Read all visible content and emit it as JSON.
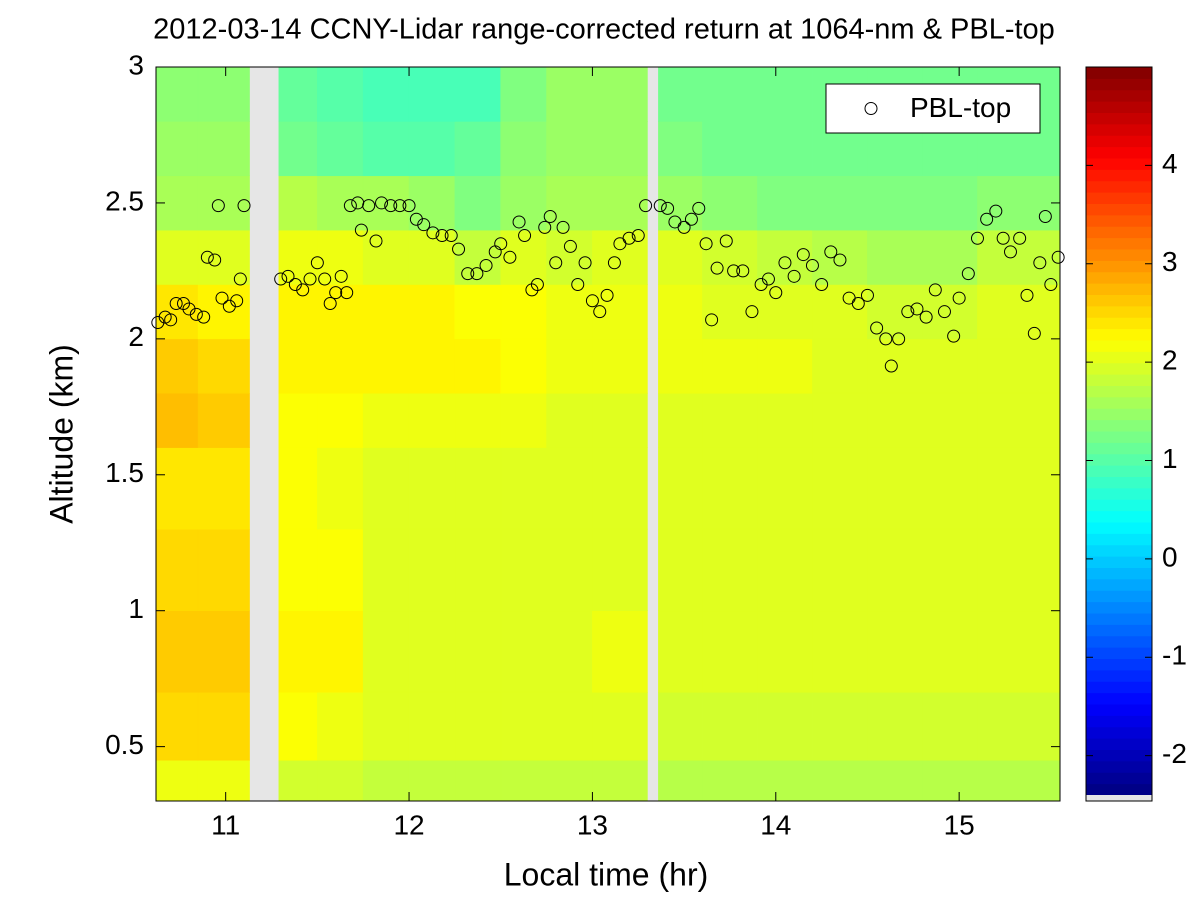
{
  "chart_data": {
    "type": "heatmap",
    "title": "2012-03-14 CCNY-Lidar range-corrected return at 1064-nm & PBL-top",
    "xlabel": "Local time (hr)",
    "ylabel": "Altitude (km)",
    "xlim": [
      10.62,
      15.55
    ],
    "ylim": [
      0.3,
      3
    ],
    "xticks": [
      11,
      12,
      13,
      14,
      15
    ],
    "yticks": [
      0.5,
      1,
      1.5,
      2,
      2.5,
      3
    ],
    "clim": [
      -2.4,
      5
    ],
    "cticks": [
      -2,
      -1,
      0,
      1,
      2,
      3,
      4
    ],
    "colormap": "jet",
    "nan_color": "#e6e6e6",
    "x_edges": [
      10.62,
      10.85,
      11.13,
      11.29,
      11.5,
      11.75,
      12.0,
      12.25,
      12.5,
      12.75,
      13.0,
      13.3,
      13.36,
      13.6,
      13.9,
      14.2,
      14.5,
      14.8,
      15.1,
      15.55
    ],
    "y_edges": [
      0.3,
      0.45,
      0.7,
      1.0,
      1.3,
      1.6,
      1.8,
      2.0,
      2.2,
      2.4,
      2.6,
      2.8,
      3.0
    ],
    "z": [
      [
        2.1,
        2.1,
        null,
        1.9,
        1.9,
        1.8,
        1.8,
        1.8,
        1.8,
        1.8,
        1.8,
        null,
        1.7,
        1.7,
        1.7,
        1.7,
        1.7,
        1.7,
        1.7
      ],
      [
        2.5,
        2.5,
        null,
        2.2,
        2.1,
        2.0,
        2.0,
        2.0,
        2.0,
        2.0,
        2.0,
        null,
        1.9,
        1.9,
        1.9,
        1.9,
        1.9,
        1.9,
        1.9
      ],
      [
        2.6,
        2.6,
        null,
        2.3,
        2.3,
        2.0,
        2.0,
        2.0,
        2.0,
        2.0,
        2.1,
        null,
        2.0,
        2.0,
        2.0,
        2.0,
        2.0,
        2.0,
        2.0
      ],
      [
        2.5,
        2.5,
        null,
        2.2,
        2.2,
        2.0,
        2.0,
        2.0,
        2.0,
        2.0,
        2.0,
        null,
        2.0,
        2.0,
        2.0,
        2.0,
        2.0,
        2.0,
        2.0
      ],
      [
        2.4,
        2.4,
        null,
        2.2,
        2.1,
        2.0,
        2.0,
        2.0,
        2.0,
        2.0,
        2.0,
        null,
        2.0,
        2.0,
        2.0,
        2.0,
        2.0,
        2.0,
        2.0
      ],
      [
        2.7,
        2.6,
        null,
        2.2,
        2.2,
        2.1,
        2.1,
        2.1,
        2.1,
        2.0,
        2.0,
        null,
        2.0,
        2.0,
        2.0,
        2.0,
        2.0,
        2.0,
        2.0
      ],
      [
        2.6,
        2.5,
        null,
        2.3,
        2.3,
        2.3,
        2.3,
        2.3,
        2.2,
        2.1,
        2.1,
        null,
        2.1,
        2.1,
        2.1,
        2.0,
        2.0,
        2.0,
        2.0
      ],
      [
        2.4,
        2.3,
        null,
        2.3,
        2.3,
        2.3,
        2.3,
        2.2,
        2.2,
        2.1,
        2.1,
        null,
        2.1,
        2.0,
        2.0,
        2.0,
        1.9,
        1.9,
        2.0
      ],
      [
        2.0,
        2.0,
        null,
        2.1,
        2.1,
        2.0,
        2.0,
        1.8,
        2.0,
        1.9,
        2.0,
        null,
        2.0,
        1.9,
        1.8,
        1.7,
        1.6,
        1.6,
        1.8
      ],
      [
        1.6,
        1.6,
        null,
        1.7,
        1.6,
        1.6,
        1.5,
        1.3,
        1.5,
        1.6,
        1.6,
        null,
        1.5,
        1.4,
        1.3,
        1.3,
        1.3,
        1.3,
        1.4
      ],
      [
        1.5,
        1.5,
        null,
        1.2,
        1.1,
        1.0,
        1.0,
        1.1,
        1.4,
        1.5,
        1.5,
        null,
        1.3,
        1.2,
        1.2,
        1.2,
        1.2,
        1.2,
        1.2
      ],
      [
        1.4,
        1.4,
        null,
        1.1,
        1.0,
        0.9,
        0.9,
        0.9,
        1.3,
        1.5,
        1.5,
        null,
        1.2,
        1.2,
        1.2,
        1.2,
        1.2,
        1.2,
        1.2
      ]
    ],
    "legend": "northeast",
    "series": [
      {
        "name": "PBL-top",
        "type": "scatter",
        "color": "#000000",
        "x": [
          10.63,
          10.67,
          10.7,
          10.73,
          10.77,
          10.8,
          10.84,
          10.88,
          10.9,
          10.94,
          10.96,
          10.98,
          11.02,
          11.06,
          11.08,
          11.1,
          11.3,
          11.34,
          11.38,
          11.42,
          11.46,
          11.5,
          11.54,
          11.57,
          11.6,
          11.63,
          11.66,
          11.68,
          11.72,
          11.74,
          11.78,
          11.82,
          11.85,
          11.9,
          11.95,
          12.0,
          12.04,
          12.08,
          12.13,
          12.18,
          12.23,
          12.27,
          12.32,
          12.37,
          12.42,
          12.47,
          12.5,
          12.55,
          12.6,
          12.63,
          12.67,
          12.7,
          12.74,
          12.77,
          12.8,
          12.84,
          12.88,
          12.92,
          12.96,
          13.0,
          13.04,
          13.08,
          13.12,
          13.15,
          13.2,
          13.25,
          13.29,
          13.37,
          13.41,
          13.45,
          13.5,
          13.54,
          13.58,
          13.62,
          13.65,
          13.68,
          13.73,
          13.77,
          13.82,
          13.87,
          13.92,
          13.96,
          14.0,
          14.05,
          14.1,
          14.15,
          14.2,
          14.25,
          14.3,
          14.35,
          14.4,
          14.45,
          14.5,
          14.55,
          14.6,
          14.63,
          14.67,
          14.72,
          14.77,
          14.82,
          14.87,
          14.92,
          14.97,
          15.0,
          15.05,
          15.1,
          15.15,
          15.2,
          15.24,
          15.28,
          15.33,
          15.37,
          15.41,
          15.44,
          15.47,
          15.5,
          15.54
        ],
        "values": [
          2.06,
          2.08,
          2.07,
          2.13,
          2.13,
          2.11,
          2.09,
          2.08,
          2.3,
          2.29,
          2.49,
          2.15,
          2.12,
          2.14,
          2.22,
          2.49,
          2.22,
          2.23,
          2.2,
          2.18,
          2.22,
          2.28,
          2.22,
          2.13,
          2.17,
          2.23,
          2.17,
          2.49,
          2.5,
          2.4,
          2.49,
          2.36,
          2.5,
          2.49,
          2.49,
          2.49,
          2.44,
          2.42,
          2.39,
          2.38,
          2.38,
          2.33,
          2.24,
          2.24,
          2.27,
          2.32,
          2.35,
          2.3,
          2.43,
          2.38,
          2.18,
          2.2,
          2.41,
          2.45,
          2.28,
          2.41,
          2.34,
          2.2,
          2.28,
          2.14,
          2.1,
          2.16,
          2.28,
          2.35,
          2.37,
          2.38,
          2.49,
          2.49,
          2.48,
          2.43,
          2.41,
          2.44,
          2.48,
          2.35,
          2.07,
          2.26,
          2.36,
          2.25,
          2.25,
          2.1,
          2.2,
          2.22,
          2.17,
          2.28,
          2.23,
          2.31,
          2.27,
          2.2,
          2.32,
          2.29,
          2.15,
          2.13,
          2.16,
          2.04,
          2.0,
          1.9,
          2.0,
          2.1,
          2.11,
          2.08,
          2.18,
          2.1,
          2.01,
          2.15,
          2.24,
          2.37,
          2.44,
          2.47,
          2.37,
          2.32,
          2.37,
          2.16,
          2.02,
          2.28,
          2.45,
          2.2,
          2.3
        ]
      }
    ]
  }
}
